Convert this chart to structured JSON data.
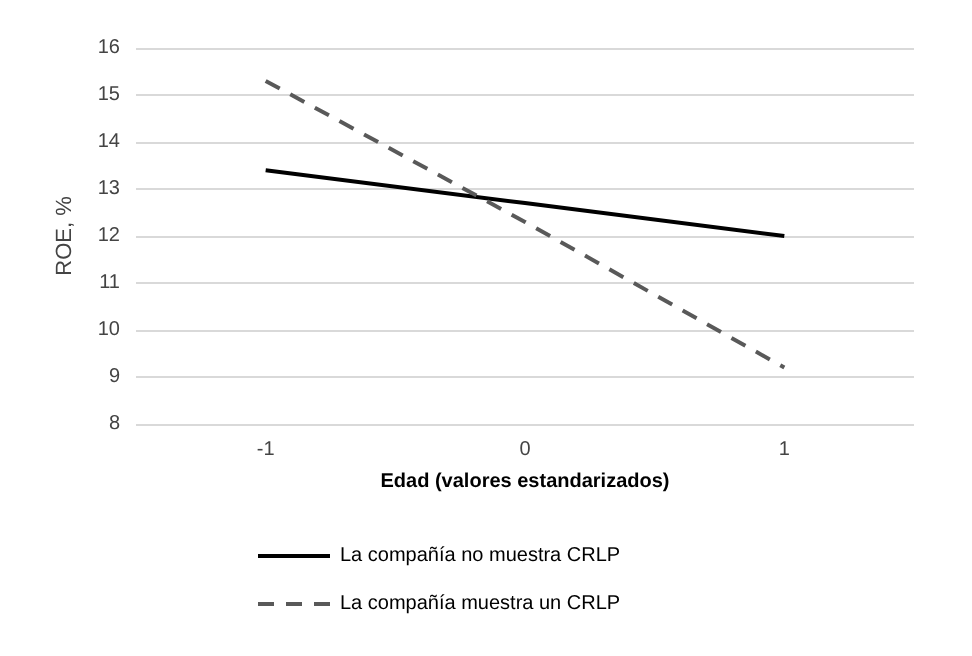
{
  "chart_data": {
    "type": "line",
    "xlabel": "Edad (valores estandarizados)",
    "ylabel": "ROE, %",
    "categories": [
      "-1",
      "0",
      "1"
    ],
    "ylim": [
      8,
      16
    ],
    "yticks": [
      8,
      9,
      10,
      11,
      12,
      13,
      14,
      15,
      16
    ],
    "grid": "y",
    "legend": "bottom",
    "marker": "none",
    "series": [
      {
        "name": "La compañía no muestra CRLP",
        "color": "#000000",
        "line_style": "solid",
        "values": [
          13.4,
          12.7,
          12.0
        ]
      },
      {
        "name": "La compañía muestra un CRLP",
        "color": "#595959",
        "line_style": "dashed",
        "values": [
          15.3,
          12.3,
          9.2
        ]
      }
    ]
  }
}
